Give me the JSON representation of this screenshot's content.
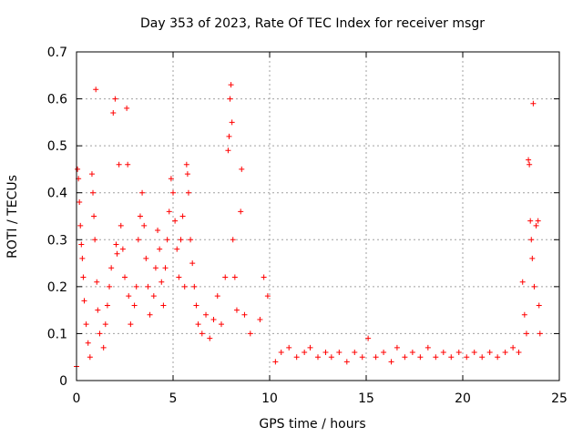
{
  "chart_data": {
    "type": "scatter",
    "title": "Day 353 of 2023, Rate Of TEC Index for receiver msgr",
    "xlabel": "GPS time / hours",
    "ylabel": "ROTI / TECUs",
    "xlim": [
      0,
      25
    ],
    "ylim": [
      0,
      0.7
    ],
    "xticks": [
      0,
      5,
      10,
      15,
      20,
      25
    ],
    "yticks": [
      0,
      0.1,
      0.2,
      0.3,
      0.4,
      0.5,
      0.6,
      0.7
    ],
    "xtick_labels": [
      "0",
      "5",
      "10",
      "15",
      "20",
      "25"
    ],
    "ytick_labels": [
      "0",
      "0.1",
      "0.2",
      "0.3",
      "0.4",
      "0.5",
      "0.6",
      "0.7"
    ],
    "grid": true,
    "marker": "plus",
    "color": "#ff0000",
    "series": [
      {
        "name": "ROTI",
        "points": [
          [
            0.0,
            0.03
          ],
          [
            0.05,
            0.45
          ],
          [
            0.1,
            0.43
          ],
          [
            0.15,
            0.38
          ],
          [
            0.2,
            0.33
          ],
          [
            0.25,
            0.29
          ],
          [
            0.3,
            0.26
          ],
          [
            0.35,
            0.22
          ],
          [
            0.4,
            0.17
          ],
          [
            0.5,
            0.12
          ],
          [
            0.6,
            0.08
          ],
          [
            0.7,
            0.05
          ],
          [
            0.8,
            0.44
          ],
          [
            0.85,
            0.4
          ],
          [
            0.9,
            0.35
          ],
          [
            0.95,
            0.3
          ],
          [
            1.0,
            0.62
          ],
          [
            1.05,
            0.21
          ],
          [
            1.1,
            0.15
          ],
          [
            1.2,
            0.1
          ],
          [
            1.4,
            0.07
          ],
          [
            1.5,
            0.12
          ],
          [
            1.6,
            0.16
          ],
          [
            1.7,
            0.2
          ],
          [
            1.8,
            0.24
          ],
          [
            1.9,
            0.57
          ],
          [
            2.0,
            0.6
          ],
          [
            2.05,
            0.29
          ],
          [
            2.1,
            0.27
          ],
          [
            2.2,
            0.46
          ],
          [
            2.3,
            0.33
          ],
          [
            2.4,
            0.28
          ],
          [
            2.5,
            0.22
          ],
          [
            2.6,
            0.58
          ],
          [
            2.65,
            0.46
          ],
          [
            2.7,
            0.18
          ],
          [
            2.8,
            0.12
          ],
          [
            3.0,
            0.16
          ],
          [
            3.1,
            0.2
          ],
          [
            3.2,
            0.3
          ],
          [
            3.3,
            0.35
          ],
          [
            3.4,
            0.4
          ],
          [
            3.5,
            0.33
          ],
          [
            3.6,
            0.26
          ],
          [
            3.7,
            0.2
          ],
          [
            3.8,
            0.14
          ],
          [
            4.0,
            0.18
          ],
          [
            4.1,
            0.24
          ],
          [
            4.2,
            0.32
          ],
          [
            4.3,
            0.28
          ],
          [
            4.4,
            0.21
          ],
          [
            4.5,
            0.16
          ],
          [
            4.6,
            0.24
          ],
          [
            4.7,
            0.3
          ],
          [
            4.8,
            0.36
          ],
          [
            4.9,
            0.43
          ],
          [
            5.0,
            0.4
          ],
          [
            5.1,
            0.34
          ],
          [
            5.2,
            0.28
          ],
          [
            5.3,
            0.22
          ],
          [
            5.4,
            0.3
          ],
          [
            5.5,
            0.35
          ],
          [
            5.6,
            0.2
          ],
          [
            5.7,
            0.46
          ],
          [
            5.75,
            0.44
          ],
          [
            5.8,
            0.4
          ],
          [
            5.9,
            0.3
          ],
          [
            6.0,
            0.25
          ],
          [
            6.1,
            0.2
          ],
          [
            6.2,
            0.16
          ],
          [
            6.3,
            0.12
          ],
          [
            6.5,
            0.1
          ],
          [
            6.7,
            0.14
          ],
          [
            6.9,
            0.09
          ],
          [
            7.1,
            0.13
          ],
          [
            7.3,
            0.18
          ],
          [
            7.5,
            0.12
          ],
          [
            7.7,
            0.22
          ],
          [
            7.85,
            0.49
          ],
          [
            7.9,
            0.52
          ],
          [
            7.95,
            0.6
          ],
          [
            8.0,
            0.63
          ],
          [
            8.05,
            0.55
          ],
          [
            8.1,
            0.3
          ],
          [
            8.2,
            0.22
          ],
          [
            8.3,
            0.15
          ],
          [
            8.5,
            0.36
          ],
          [
            8.55,
            0.45
          ],
          [
            8.7,
            0.14
          ],
          [
            9.0,
            0.1
          ],
          [
            9.5,
            0.13
          ],
          [
            9.7,
            0.22
          ],
          [
            9.9,
            0.18
          ],
          [
            10.3,
            0.04
          ],
          [
            10.6,
            0.06
          ],
          [
            11.0,
            0.07
          ],
          [
            11.4,
            0.05
          ],
          [
            11.8,
            0.06
          ],
          [
            12.1,
            0.07
          ],
          [
            12.5,
            0.05
          ],
          [
            12.9,
            0.06
          ],
          [
            13.2,
            0.05
          ],
          [
            13.6,
            0.06
          ],
          [
            14.0,
            0.04
          ],
          [
            14.4,
            0.06
          ],
          [
            14.8,
            0.05
          ],
          [
            15.1,
            0.09
          ],
          [
            15.5,
            0.05
          ],
          [
            15.9,
            0.06
          ],
          [
            16.3,
            0.04
          ],
          [
            16.6,
            0.07
          ],
          [
            17.0,
            0.05
          ],
          [
            17.4,
            0.06
          ],
          [
            17.8,
            0.05
          ],
          [
            18.2,
            0.07
          ],
          [
            18.6,
            0.05
          ],
          [
            19.0,
            0.06
          ],
          [
            19.4,
            0.05
          ],
          [
            19.8,
            0.06
          ],
          [
            20.2,
            0.05
          ],
          [
            20.6,
            0.06
          ],
          [
            21.0,
            0.05
          ],
          [
            21.4,
            0.06
          ],
          [
            21.8,
            0.05
          ],
          [
            22.2,
            0.06
          ],
          [
            22.6,
            0.07
          ],
          [
            22.9,
            0.06
          ],
          [
            23.1,
            0.21
          ],
          [
            23.2,
            0.14
          ],
          [
            23.3,
            0.1
          ],
          [
            23.4,
            0.47
          ],
          [
            23.45,
            0.46
          ],
          [
            23.5,
            0.34
          ],
          [
            23.55,
            0.3
          ],
          [
            23.6,
            0.26
          ],
          [
            23.65,
            0.59
          ],
          [
            23.7,
            0.2
          ],
          [
            23.8,
            0.33
          ],
          [
            23.9,
            0.34
          ],
          [
            23.95,
            0.16
          ],
          [
            24.0,
            0.1
          ]
        ]
      }
    ]
  }
}
